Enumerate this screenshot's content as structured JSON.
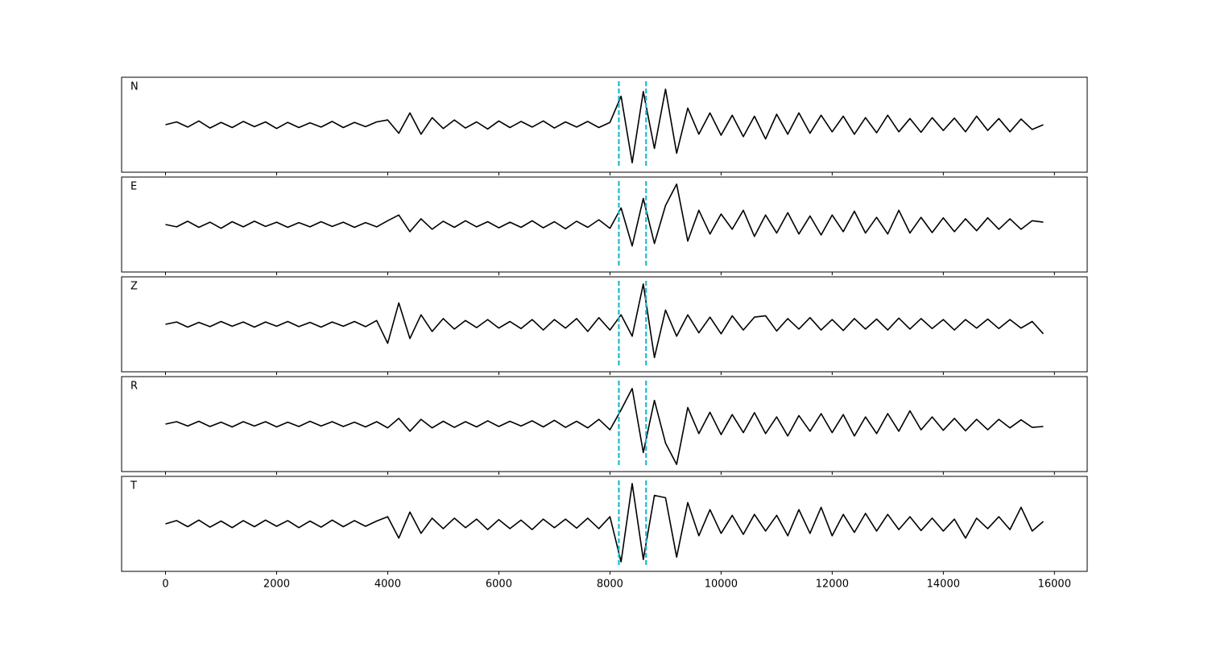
{
  "chart_data": {
    "type": "line",
    "x": [
      0,
      200,
      400,
      600,
      800,
      1000,
      1200,
      1400,
      1600,
      1800,
      2000,
      2200,
      2400,
      2600,
      2800,
      3000,
      3200,
      3400,
      3600,
      3800,
      4000,
      4200,
      4400,
      4600,
      4800,
      5000,
      5200,
      5400,
      5600,
      5800,
      6000,
      6200,
      6400,
      6600,
      6800,
      7000,
      7200,
      7400,
      7600,
      7800,
      8000,
      8200,
      8400,
      8600,
      8800,
      9000,
      9200,
      9400,
      9600,
      9800,
      10000,
      10200,
      10400,
      10600,
      10800,
      11000,
      11200,
      11400,
      11600,
      11800,
      12000,
      12200,
      12400,
      12600,
      12800,
      13000,
      13200,
      13400,
      13600,
      13800,
      14000,
      14200,
      14400,
      14600,
      14800,
      15000,
      15200,
      15400,
      15600,
      15800
    ],
    "series": [
      {
        "name": "N",
        "color": "#000000",
        "values": [
          0,
          0.06,
          -0.05,
          0.08,
          -0.07,
          0.05,
          -0.06,
          0.07,
          -0.04,
          0.06,
          -0.08,
          0.05,
          -0.06,
          0.04,
          -0.05,
          0.07,
          -0.06,
          0.05,
          -0.04,
          0.06,
          0.1,
          -0.18,
          0.25,
          -0.2,
          0.15,
          -0.08,
          0.1,
          -0.07,
          0.06,
          -0.09,
          0.08,
          -0.06,
          0.07,
          -0.05,
          0.08,
          -0.07,
          0.06,
          -0.05,
          0.07,
          -0.06,
          0.05,
          0.6,
          -0.8,
          0.7,
          -0.5,
          0.75,
          -0.6,
          0.35,
          -0.2,
          0.25,
          -0.22,
          0.2,
          -0.25,
          0.18,
          -0.3,
          0.22,
          -0.2,
          0.25,
          -0.18,
          0.2,
          -0.15,
          0.18,
          -0.2,
          0.15,
          -0.17,
          0.2,
          -0.15,
          0.13,
          -0.16,
          0.15,
          -0.12,
          0.14,
          -0.15,
          0.18,
          -0.12,
          0.13,
          -0.15,
          0.12,
          -0.1,
          0
        ]
      },
      {
        "name": "E",
        "color": "#000000",
        "values": [
          0,
          -0.05,
          0.07,
          -0.06,
          0.05,
          -0.08,
          0.06,
          -0.05,
          0.07,
          -0.04,
          0.05,
          -0.06,
          0.04,
          -0.05,
          0.06,
          -0.04,
          0.05,
          -0.06,
          0.04,
          -0.05,
          0.08,
          0.2,
          -0.15,
          0.12,
          -0.1,
          0.07,
          -0.06,
          0.08,
          -0.05,
          0.06,
          -0.07,
          0.05,
          -0.06,
          0.08,
          -0.07,
          0.06,
          -0.09,
          0.07,
          -0.06,
          0.1,
          -0.08,
          0.35,
          -0.45,
          0.55,
          -0.4,
          0.4,
          0.85,
          -0.35,
          0.3,
          -0.2,
          0.22,
          -0.1,
          0.3,
          -0.25,
          0.2,
          -0.18,
          0.25,
          -0.2,
          0.18,
          -0.22,
          0.2,
          -0.15,
          0.28,
          -0.18,
          0.15,
          -0.2,
          0.3,
          -0.18,
          0.15,
          -0.17,
          0.14,
          -0.15,
          0.12,
          -0.13,
          0.14,
          -0.1,
          0.12,
          -0.1,
          0.08,
          0.05
        ]
      },
      {
        "name": "Z",
        "color": "#000000",
        "values": [
          0,
          0.05,
          -0.06,
          0.04,
          -0.05,
          0.06,
          -0.04,
          0.05,
          -0.06,
          0.05,
          -0.04,
          0.06,
          -0.05,
          0.04,
          -0.06,
          0.05,
          -0.04,
          0.06,
          -0.05,
          0.08,
          -0.4,
          0.45,
          -0.3,
          0.2,
          -0.15,
          0.12,
          -0.1,
          0.08,
          -0.07,
          0.1,
          -0.08,
          0.06,
          -0.09,
          0.1,
          -0.12,
          0.1,
          -0.08,
          0.12,
          -0.15,
          0.14,
          -0.12,
          0.2,
          -0.25,
          0.85,
          -0.7,
          0.3,
          -0.25,
          0.2,
          -0.18,
          0.15,
          -0.2,
          0.18,
          -0.12,
          0.15,
          0.18,
          -0.14,
          0.12,
          -0.1,
          0.14,
          -0.12,
          0.1,
          -0.13,
          0.12,
          -0.1,
          0.11,
          -0.12,
          0.13,
          -0.1,
          0.12,
          -0.09,
          0.1,
          -0.12,
          0.1,
          -0.08,
          0.11,
          -0.09,
          0.1,
          -0.08,
          0.06,
          -0.2
        ]
      },
      {
        "name": "R",
        "color": "#000000",
        "values": [
          0,
          0.05,
          -0.04,
          0.06,
          -0.05,
          0.04,
          -0.06,
          0.05,
          -0.04,
          0.05,
          -0.06,
          0.04,
          -0.05,
          0.06,
          -0.04,
          0.05,
          -0.05,
          0.04,
          -0.06,
          0.05,
          -0.08,
          0.12,
          -0.15,
          0.1,
          -0.08,
          0.06,
          -0.07,
          0.05,
          -0.06,
          0.07,
          -0.05,
          0.06,
          -0.04,
          0.07,
          -0.06,
          0.08,
          -0.07,
          0.06,
          -0.08,
          0.1,
          -0.12,
          0.3,
          0.75,
          -0.6,
          0.5,
          -0.4,
          -0.85,
          0.35,
          -0.2,
          0.25,
          -0.22,
          0.2,
          -0.18,
          0.24,
          -0.2,
          0.15,
          -0.25,
          0.18,
          -0.15,
          0.22,
          -0.18,
          0.2,
          -0.25,
          0.15,
          -0.2,
          0.22,
          -0.15,
          0.28,
          -0.12,
          0.15,
          -0.13,
          0.12,
          -0.14,
          0.1,
          -0.12,
          0.1,
          -0.08,
          0.09,
          -0.07,
          -0.05
        ]
      },
      {
        "name": "T",
        "color": "#000000",
        "values": [
          0,
          0.07,
          -0.06,
          0.08,
          -0.07,
          0.06,
          -0.08,
          0.07,
          -0.06,
          0.08,
          -0.05,
          0.07,
          -0.08,
          0.06,
          -0.07,
          0.08,
          -0.06,
          0.07,
          -0.05,
          0.06,
          0.15,
          -0.3,
          0.25,
          -0.2,
          0.12,
          -0.1,
          0.12,
          -0.08,
          0.1,
          -0.12,
          0.09,
          -0.1,
          0.08,
          -0.12,
          0.1,
          -0.08,
          0.1,
          -0.09,
          0.12,
          -0.1,
          0.15,
          -0.8,
          0.85,
          -0.75,
          0.6,
          0.55,
          -0.7,
          0.45,
          -0.25,
          0.3,
          -0.2,
          0.18,
          -0.22,
          0.2,
          -0.15,
          0.18,
          -0.25,
          0.3,
          -0.2,
          0.35,
          -0.25,
          0.2,
          -0.18,
          0.22,
          -0.15,
          0.2,
          -0.12,
          0.15,
          -0.14,
          0.12,
          -0.15,
          0.1,
          -0.3,
          0.12,
          -0.1,
          0.15,
          -0.12,
          0.35,
          -0.15,
          0.05
        ]
      }
    ],
    "xlim": [
      -790,
      16590
    ],
    "xticks": [
      0,
      2000,
      4000,
      6000,
      8000,
      10000,
      12000,
      14000,
      16000
    ],
    "ylim": [
      -1,
      1
    ],
    "vlines": [
      8160,
      8650
    ],
    "vline_color": "#17becf"
  }
}
